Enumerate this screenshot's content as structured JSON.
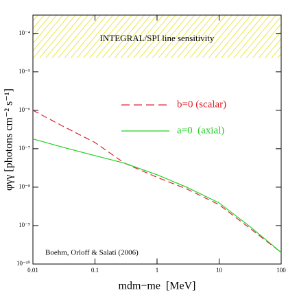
{
  "chart_data": {
    "type": "line",
    "x_label": "mdm−me  [MeV]",
    "y_label": "φγγ [photons cm⁻² s⁻¹]",
    "annotation": "Boehm, Orloff & Salati (2006)",
    "log_x": true,
    "log_y": true,
    "xlim": [
      0.01,
      100
    ],
    "ylim": [
      1e-10,
      0.0003
    ],
    "xticks": [
      0.01,
      0.1,
      1,
      10,
      100
    ],
    "yticks": [
      {
        "value": 1e-10,
        "label": "10⁻¹⁰"
      },
      {
        "value": 1e-09,
        "label": "10⁻⁹"
      },
      {
        "value": 1e-08,
        "label": "10⁻⁸"
      },
      {
        "value": 1e-07,
        "label": "10⁻⁷"
      },
      {
        "value": 1e-06,
        "label": "10⁻⁶"
      },
      {
        "value": 1e-05,
        "label": "10⁻⁵"
      },
      {
        "value": 0.0001,
        "label": "10⁻⁴"
      }
    ],
    "band": {
      "label": "INTEGRAL/SPI line sensitivity",
      "ymin": 2.3e-05,
      "color": "#e6e020"
    },
    "x": [
      0.01,
      0.03,
      0.1,
      0.3,
      1,
      3,
      10,
      30,
      100
    ],
    "series": [
      {
        "name": "b=0 (scalar)",
        "color": "#e0202a",
        "dashed": true,
        "values": [
          1e-06,
          3.9e-07,
          1.45e-07,
          4.2e-08,
          1.8e-08,
          9e-09,
          3.5e-09,
          9e-10,
          2e-10
        ]
      },
      {
        "name": "a=0  (axial)",
        "color": "#20d020",
        "dashed": false,
        "values": [
          1.8e-07,
          1.1e-07,
          6.6e-08,
          4.2e-08,
          2.1e-08,
          1e-08,
          3.9e-09,
          1e-09,
          2e-10
        ]
      }
    ]
  }
}
